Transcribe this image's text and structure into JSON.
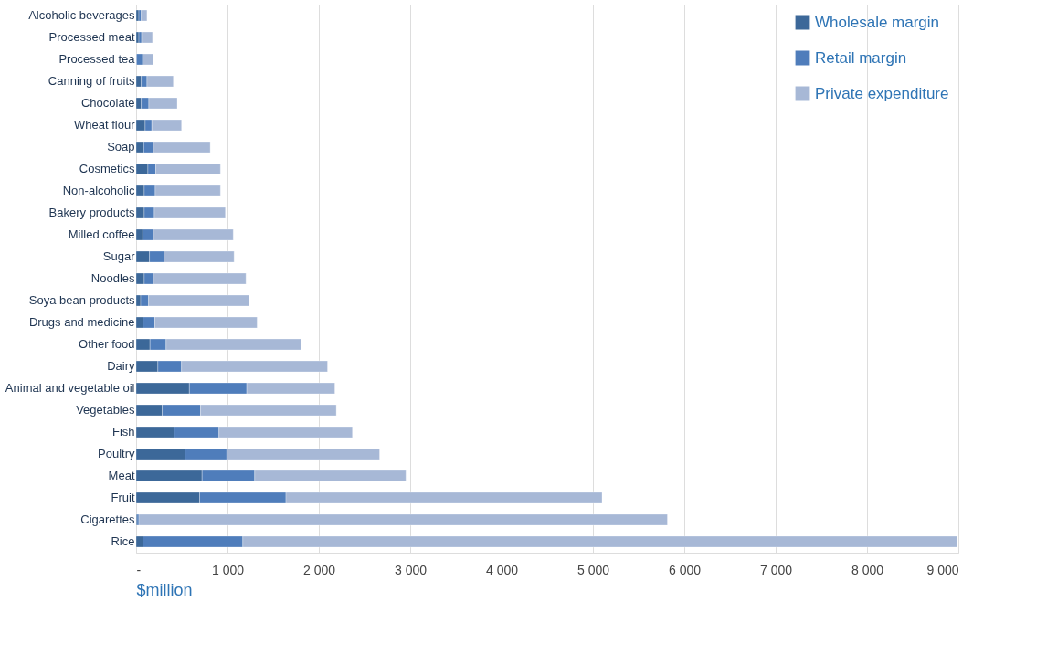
{
  "chart_data": {
    "type": "bar",
    "orientation": "horizontal",
    "stacked": true,
    "xlabel": "$million",
    "categories": [
      "Alcoholic beverages",
      "Processed meat",
      "Processed tea",
      "Canning of fruits",
      "Chocolate",
      "Wheat flour",
      "Soap",
      "Cosmetics",
      "Non-alcoholic",
      "Bakery products",
      "Milled coffee",
      "Sugar",
      "Noodles",
      "Soya bean products",
      "Drugs and medicine",
      "Other food",
      "Dairy",
      "Animal and vegetable oil",
      "Vegetables",
      "Fish",
      "Poultry",
      "Meat",
      "Fruit",
      "Cigarettes",
      "Rice"
    ],
    "series": [
      {
        "name": "Wholesale margin",
        "color": "#3c6899",
        "values": [
          30,
          30,
          5,
          56,
          56,
          99,
          83,
          129,
          89,
          89,
          73,
          146,
          89,
          50,
          76,
          152,
          238,
          583,
          285,
          417,
          536,
          722,
          695,
          10,
          75
        ]
      },
      {
        "name": "Retail margin",
        "color": "#4f7dbb",
        "values": [
          26,
          30,
          65,
          63,
          83,
          73,
          106,
          86,
          120,
          110,
          116,
          159,
          100,
          86,
          129,
          176,
          259,
          628,
          420,
          490,
          457,
          576,
          945,
          20,
          1093
        ]
      },
      {
        "name": "Private expenditure",
        "color": "#a7b8d6",
        "values": [
          63,
          119,
          119,
          288,
          311,
          325,
          622,
          708,
          714,
          778,
          874,
          767,
          1013,
          1102,
          1119,
          1482,
          1598,
          964,
          1486,
          1460,
          1672,
          1655,
          3460,
          5785,
          7822
        ]
      }
    ],
    "xlim": [
      0,
      9000
    ],
    "xticks": [
      {
        "value": 0,
        "label": "-"
      },
      {
        "value": 1000,
        "label": "1 000"
      },
      {
        "value": 2000,
        "label": "2 000"
      },
      {
        "value": 3000,
        "label": "3 000"
      },
      {
        "value": 4000,
        "label": "4 000"
      },
      {
        "value": 5000,
        "label": "5 000"
      },
      {
        "value": 6000,
        "label": "6 000"
      },
      {
        "value": 7000,
        "label": "7 000"
      },
      {
        "value": 8000,
        "label": "8 000"
      },
      {
        "value": 9000,
        "label": "9 000"
      }
    ],
    "grid": "x",
    "legend": "top right"
  }
}
